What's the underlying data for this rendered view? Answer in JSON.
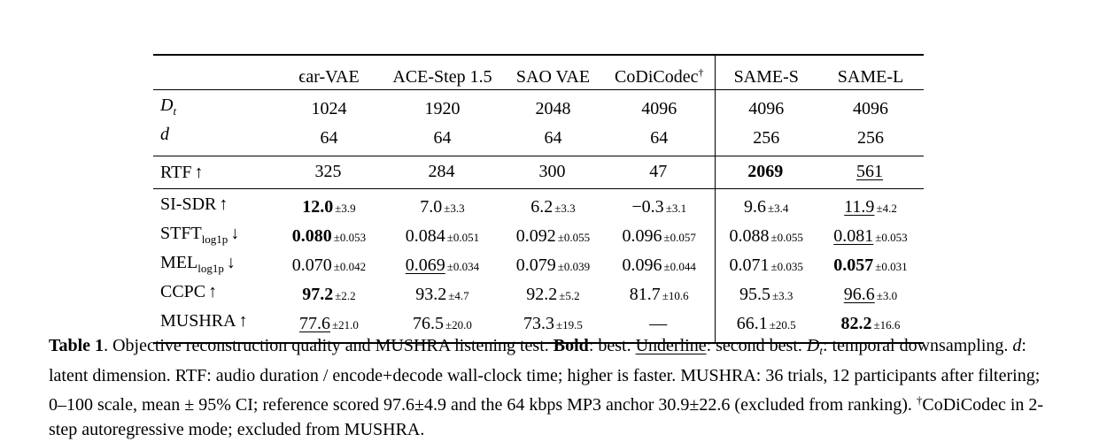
{
  "table": {
    "columns": [
      {
        "name": "ϵar-VAE",
        "dagger": ""
      },
      {
        "name": "ACE-Step 1.5",
        "dagger": ""
      },
      {
        "name": "SAO VAE",
        "dagger": ""
      },
      {
        "name": "CoDiCodec",
        "dagger": "†"
      },
      {
        "name": "SAME-S",
        "dagger": ""
      },
      {
        "name": "SAME-L",
        "dagger": ""
      }
    ],
    "config_rows": [
      {
        "label": "D",
        "label_sub": "t",
        "values": [
          "1024",
          "1920",
          "2048",
          "4096",
          "4096",
          "4096"
        ]
      },
      {
        "label": "d",
        "label_sub": "",
        "values": [
          "64",
          "64",
          "64",
          "64",
          "256",
          "256"
        ]
      }
    ],
    "rtf_row": {
      "label": "RTF",
      "arrow": "↑",
      "cells": [
        {
          "v": "325",
          "pm": "",
          "style": ""
        },
        {
          "v": "284",
          "pm": "",
          "style": ""
        },
        {
          "v": "300",
          "pm": "",
          "style": ""
        },
        {
          "v": "47",
          "pm": "",
          "style": ""
        },
        {
          "v": "2069",
          "pm": "",
          "style": "bold"
        },
        {
          "v": "561",
          "pm": "",
          "style": "underline"
        }
      ]
    },
    "metric_rows": [
      {
        "label": "SI-SDR",
        "label_sub": "",
        "arrow": "↑",
        "cells": [
          {
            "v": "12.0",
            "pm": "±3.9",
            "style": "bold"
          },
          {
            "v": "7.0",
            "pm": "±3.3",
            "style": ""
          },
          {
            "v": "6.2",
            "pm": "±3.3",
            "style": ""
          },
          {
            "v": "−0.3",
            "pm": "±3.1",
            "style": ""
          },
          {
            "v": "9.6",
            "pm": "±3.4",
            "style": ""
          },
          {
            "v": "11.9",
            "pm": "±4.2",
            "style": "underline"
          }
        ]
      },
      {
        "label": "STFT",
        "label_sub": "log1p",
        "arrow": "↓",
        "cells": [
          {
            "v": "0.080",
            "pm": "±0.053",
            "style": "bold"
          },
          {
            "v": "0.084",
            "pm": "±0.051",
            "style": ""
          },
          {
            "v": "0.092",
            "pm": "±0.055",
            "style": ""
          },
          {
            "v": "0.096",
            "pm": "±0.057",
            "style": ""
          },
          {
            "v": "0.088",
            "pm": "±0.055",
            "style": ""
          },
          {
            "v": "0.081",
            "pm": "±0.053",
            "style": "underline"
          }
        ]
      },
      {
        "label": "MEL",
        "label_sub": "log1p",
        "arrow": "↓",
        "cells": [
          {
            "v": "0.070",
            "pm": "±0.042",
            "style": ""
          },
          {
            "v": "0.069",
            "pm": "±0.034",
            "style": "underline"
          },
          {
            "v": "0.079",
            "pm": "±0.039",
            "style": ""
          },
          {
            "v": "0.096",
            "pm": "±0.044",
            "style": ""
          },
          {
            "v": "0.071",
            "pm": "±0.035",
            "style": ""
          },
          {
            "v": "0.057",
            "pm": "±0.031",
            "style": "bold"
          }
        ]
      },
      {
        "label": "CCPC",
        "label_sub": "",
        "arrow": "↑",
        "cells": [
          {
            "v": "97.2",
            "pm": "±2.2",
            "style": "bold"
          },
          {
            "v": "93.2",
            "pm": "±4.7",
            "style": ""
          },
          {
            "v": "92.2",
            "pm": "±5.2",
            "style": ""
          },
          {
            "v": "81.7",
            "pm": "±10.6",
            "style": ""
          },
          {
            "v": "95.5",
            "pm": "±3.3",
            "style": ""
          },
          {
            "v": "96.6",
            "pm": "±3.0",
            "style": "underline"
          }
        ]
      },
      {
        "label": "MUSHRA",
        "label_sub": "",
        "arrow": "↑",
        "cells": [
          {
            "v": "77.6",
            "pm": "±21.0",
            "style": "underline"
          },
          {
            "v": "76.5",
            "pm": "±20.0",
            "style": ""
          },
          {
            "v": "73.3",
            "pm": "±19.5",
            "style": ""
          },
          {
            "v": "—",
            "pm": "",
            "style": ""
          },
          {
            "v": "66.1",
            "pm": "±20.5",
            "style": ""
          },
          {
            "v": "82.2",
            "pm": "±16.6",
            "style": "bold"
          }
        ]
      }
    ]
  },
  "caption": {
    "label": "Table 1",
    "t1": ". Objective reconstruction quality and MUSHRA listening test. ",
    "bold_word": "Bold",
    "t2": ": best. ",
    "underline_word": "Underline",
    "t3": ": second best. ",
    "dt_base": "D",
    "dt_sub": "t",
    "t4": ": temporal downsampling. ",
    "d_sym": "d",
    "t5": ": latent dimension. RTF: audio duration / encode+decode wall-clock time; higher is faster. MUSHRA: 36 trials, 12 participants after filtering; 0–100 scale, mean ± 95% CI; reference scored 97.6±4.9 and the 64 kbps MP3 anchor 30.9±22.6 (excluded from ranking). ",
    "dagger": "†",
    "t6": "CoDiCodec in 2-step autoregressive mode; excluded from MUSHRA."
  }
}
